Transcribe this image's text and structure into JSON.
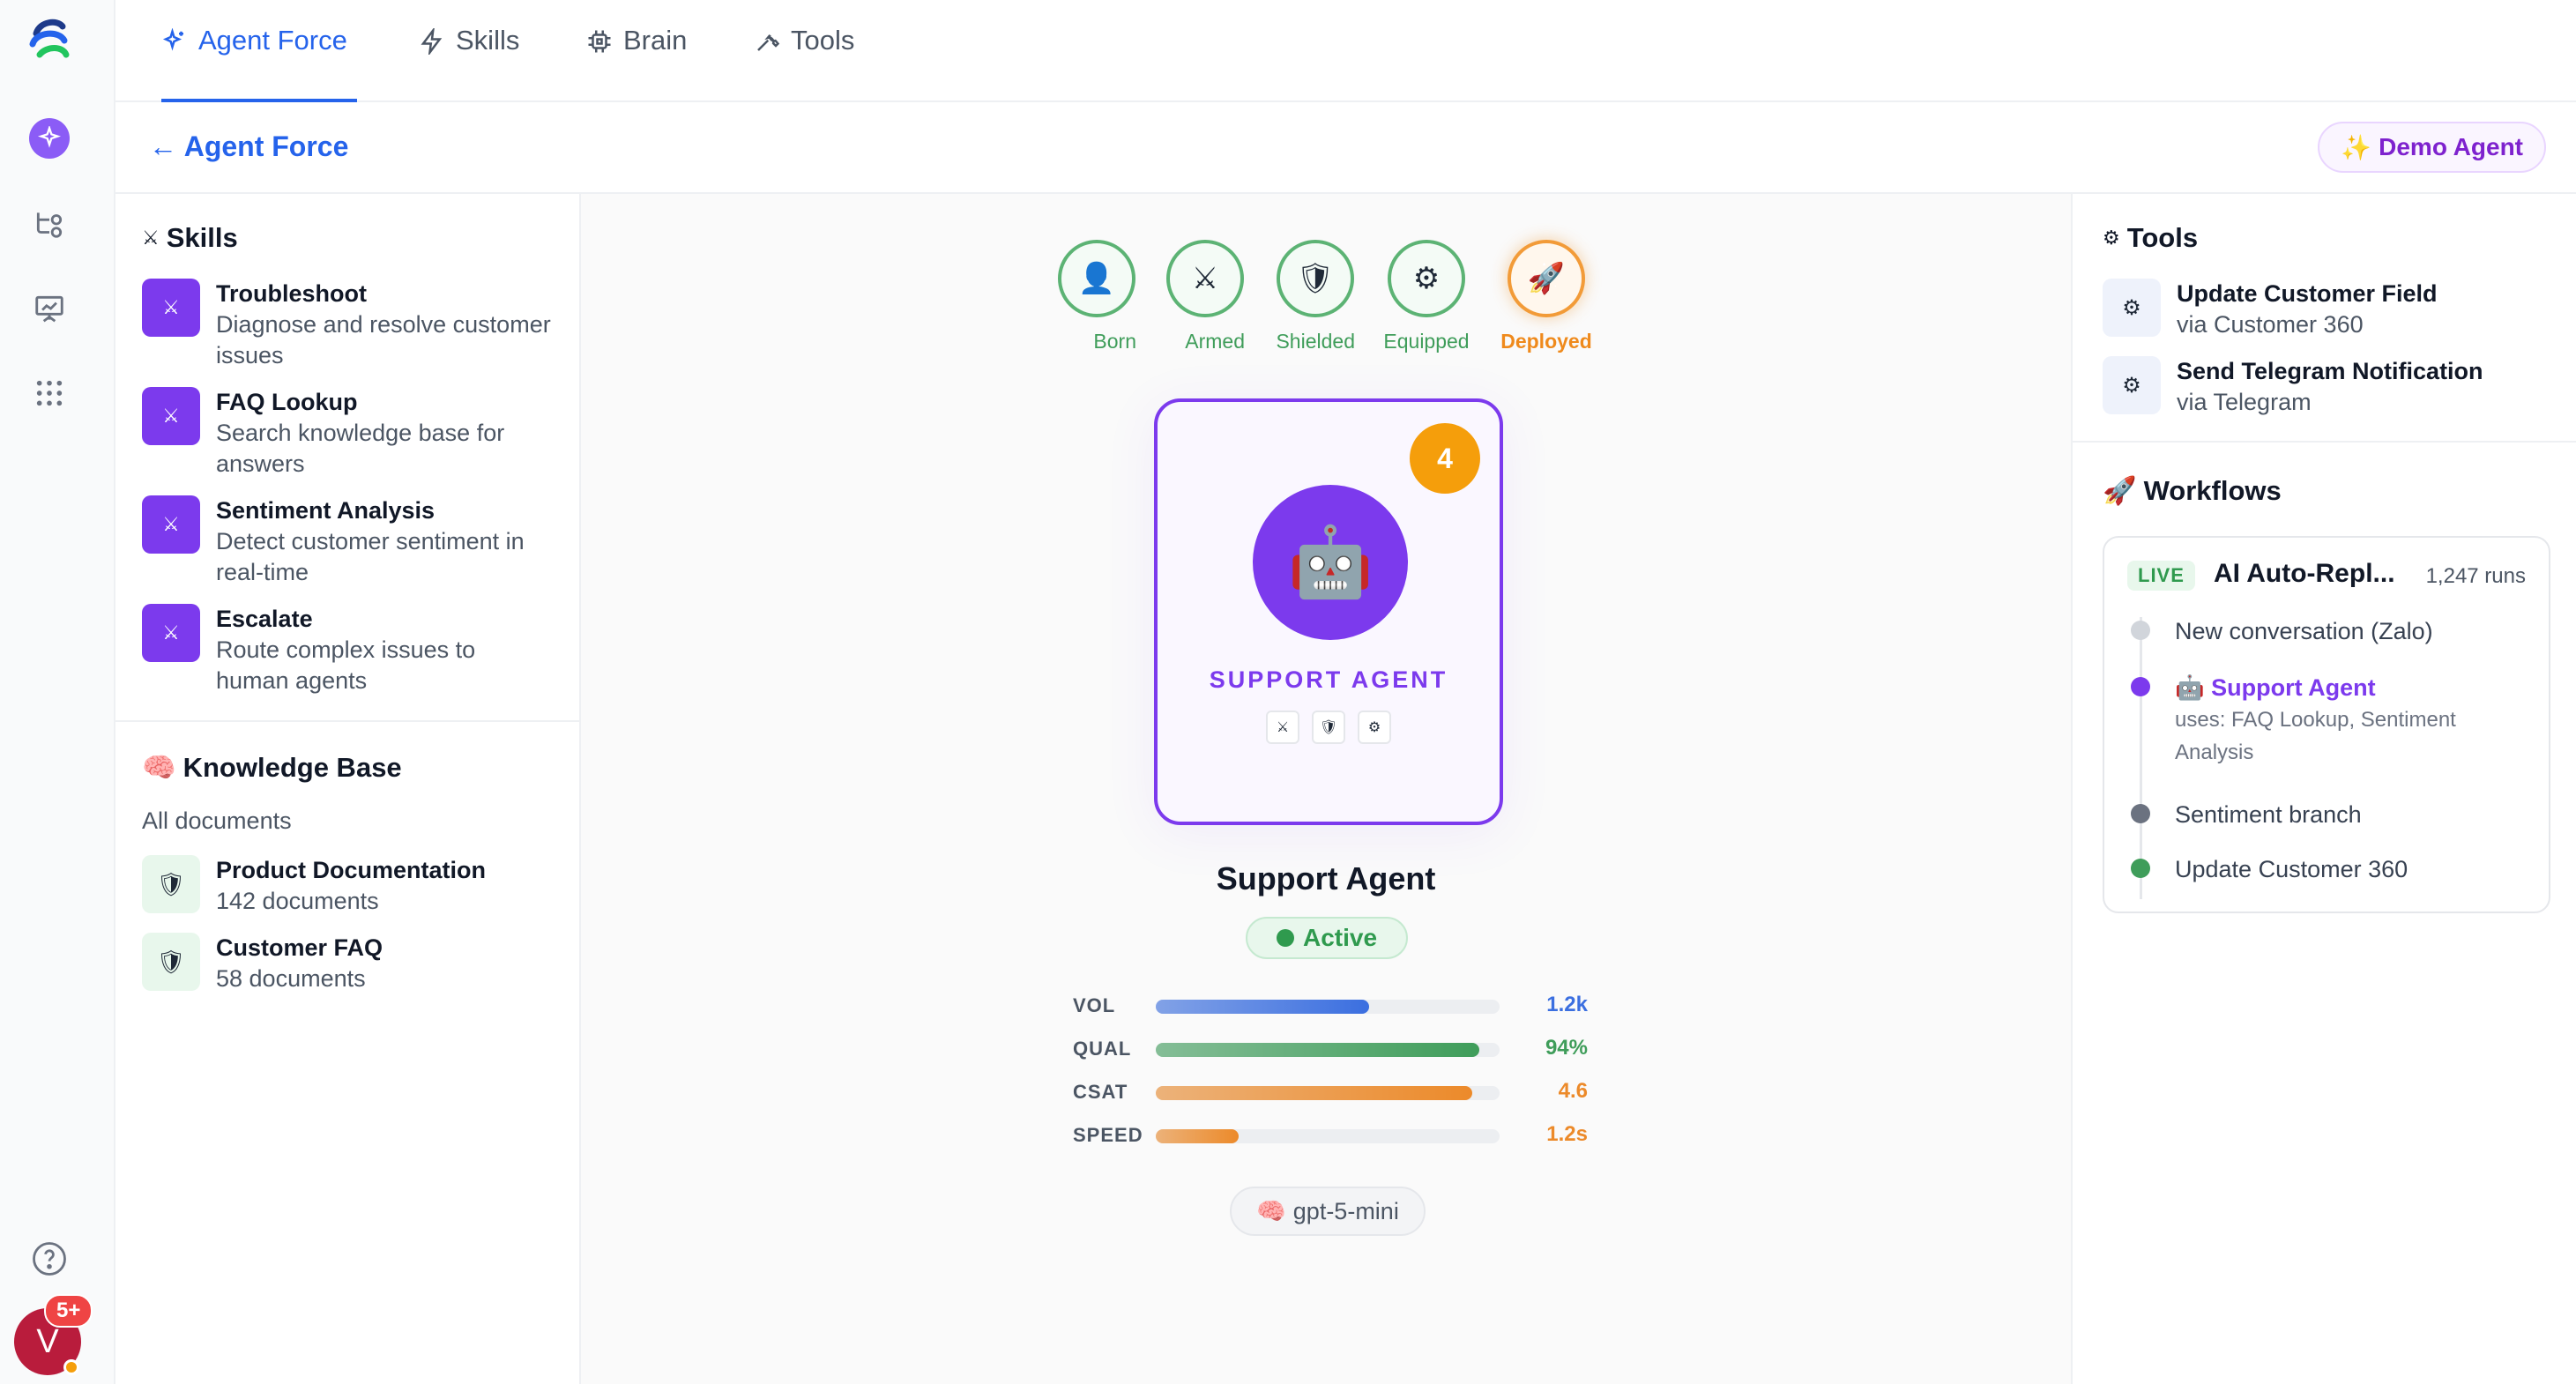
{
  "nav": {
    "tabs": [
      {
        "label": "Agent Force",
        "active": true
      },
      {
        "label": "Skills",
        "active": false
      },
      {
        "label": "Brain",
        "active": false
      },
      {
        "label": "Tools",
        "active": false
      }
    ]
  },
  "rail": {
    "notification_count": "5+",
    "avatar_initial": "V"
  },
  "subheader": {
    "back_label": "← Agent Force",
    "demo_label": "Demo Agent"
  },
  "skills": {
    "title": "Skills",
    "items": [
      {
        "title": "Troubleshoot",
        "desc": "Diagnose and resolve customer issues"
      },
      {
        "title": "FAQ Lookup",
        "desc": "Search knowledge base for answers"
      },
      {
        "title": "Sentiment Analysis",
        "desc": "Detect customer sentiment in real-time"
      },
      {
        "title": "Escalate",
        "desc": "Route complex issues to human agents"
      }
    ]
  },
  "knowledge": {
    "title": "Knowledge Base",
    "subtitle": "All documents",
    "items": [
      {
        "title": "Product Documentation",
        "desc": "142 documents"
      },
      {
        "title": "Customer FAQ",
        "desc": "58 documents"
      }
    ]
  },
  "stages": [
    {
      "label": "Born",
      "icon": "👤"
    },
    {
      "label": "Armed",
      "icon": "⚔"
    },
    {
      "label": "Shielded",
      "icon": "🛡"
    },
    {
      "label": "Equipped",
      "icon": "⚙"
    },
    {
      "label": "Deployed",
      "icon": "🚀"
    }
  ],
  "agent": {
    "level": "4",
    "card_name": "SUPPORT AGENT",
    "name": "Support Agent",
    "status": "Active",
    "model": "gpt-5-mini",
    "stats": [
      {
        "key": "VOL",
        "value": "1.2k",
        "fill": 0.62,
        "color": "#3b6fe0"
      },
      {
        "key": "QUAL",
        "value": "94%",
        "fill": 0.94,
        "color": "#3f9d5a"
      },
      {
        "key": "CSAT",
        "value": "4.6",
        "fill": 0.92,
        "color": "#ec8a2a"
      },
      {
        "key": "SPEED",
        "value": "1.2s",
        "fill": 0.24,
        "color": "#ec8a2a"
      }
    ]
  },
  "tools": {
    "title": "Tools",
    "items": [
      {
        "title": "Update Customer Field",
        "desc": "via Customer 360"
      },
      {
        "title": "Send Telegram Notification",
        "desc": "via Telegram"
      }
    ]
  },
  "workflows": {
    "title": "Workflows",
    "badge": "LIVE",
    "name": "AI Auto-Repl...",
    "runs": "1,247 runs",
    "steps": [
      {
        "label": "New conversation (Zalo)",
        "color": "#d1d5db"
      },
      {
        "label": "Support Agent",
        "sub": "uses: FAQ Lookup, Sentiment Analysis",
        "color": "#7c3aed"
      },
      {
        "label": "Sentiment branch",
        "color": "#6b7280"
      },
      {
        "label": "Update Customer 360",
        "color": "#3f9d5a"
      }
    ]
  }
}
